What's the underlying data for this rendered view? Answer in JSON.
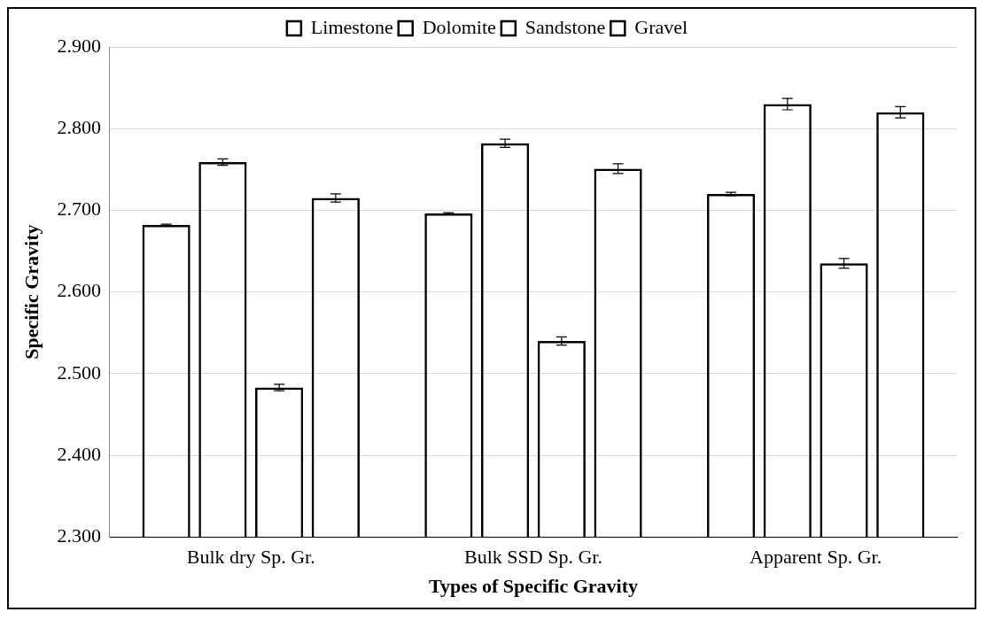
{
  "chart_data": {
    "type": "bar",
    "xlabel": "Types of Specific Gravity",
    "ylabel": "Specific Gravity",
    "categories": [
      "Bulk dry Sp. Gr.",
      "Bulk SSD Sp. Gr.",
      "Apparent Sp. Gr."
    ],
    "series": [
      {
        "name": "Limestone",
        "color": "#000000",
        "values": [
          2.682,
          2.696,
          2.72
        ],
        "errors": [
          0.001,
          0.001,
          0.002
        ]
      },
      {
        "name": "Dolomite",
        "color": "#000000",
        "values": [
          2.759,
          2.782,
          2.83
        ],
        "errors": [
          0.004,
          0.005,
          0.007
        ]
      },
      {
        "name": "Sandstone",
        "color": "#000000",
        "values": [
          2.483,
          2.54,
          2.635
        ],
        "errors": [
          0.004,
          0.005,
          0.006
        ]
      },
      {
        "name": "Gravel",
        "color": "#000000",
        "values": [
          2.715,
          2.751,
          2.82
        ],
        "errors": [
          0.005,
          0.006,
          0.007
        ]
      }
    ],
    "ylim": [
      2.3,
      2.9
    ],
    "yticks": [
      {
        "value": 2.3,
        "label": "2.300"
      },
      {
        "value": 2.4,
        "label": "2.400"
      },
      {
        "value": 2.5,
        "label": "2.500"
      },
      {
        "value": 2.6,
        "label": "2.600"
      },
      {
        "value": 2.7,
        "label": "2.700"
      },
      {
        "value": 2.8,
        "label": "2.800"
      },
      {
        "value": 2.9,
        "label": "2.900"
      }
    ],
    "grid": "y",
    "legend": "top"
  }
}
